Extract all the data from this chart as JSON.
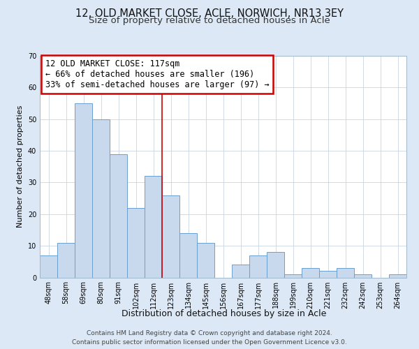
{
  "title1": "12, OLD MARKET CLOSE, ACLE, NORWICH, NR13 3EY",
  "title2": "Size of property relative to detached houses in Acle",
  "xlabel": "Distribution of detached houses by size in Acle",
  "ylabel": "Number of detached properties",
  "bar_labels": [
    "48sqm",
    "58sqm",
    "69sqm",
    "80sqm",
    "91sqm",
    "102sqm",
    "112sqm",
    "123sqm",
    "134sqm",
    "145sqm",
    "156sqm",
    "167sqm",
    "177sqm",
    "188sqm",
    "199sqm",
    "210sqm",
    "221sqm",
    "232sqm",
    "242sqm",
    "253sqm",
    "264sqm"
  ],
  "bar_values": [
    7,
    11,
    55,
    50,
    39,
    22,
    32,
    26,
    14,
    11,
    0,
    4,
    7,
    8,
    1,
    3,
    2,
    3,
    1,
    0,
    1
  ],
  "bar_color": "#c8d9ee",
  "bar_edge_color": "#6a9fd0",
  "property_line_x": 6.5,
  "annotation_line1": "12 OLD MARKET CLOSE: 117sqm",
  "annotation_line2": "← 66% of detached houses are smaller (196)",
  "annotation_line3": "33% of semi-detached houses are larger (97) →",
  "annotation_box_color": "#ffffff",
  "annotation_border_color": "#cc0000",
  "ylim": [
    0,
    70
  ],
  "yticks": [
    0,
    10,
    20,
    30,
    40,
    50,
    60,
    70
  ],
  "footer1": "Contains HM Land Registry data © Crown copyright and database right 2024.",
  "footer2": "Contains public sector information licensed under the Open Government Licence v3.0.",
  "bg_color": "#dce8f5",
  "plot_bg_color": "#ffffff",
  "grid_color": "#c8d4e0",
  "title_fontsize": 10.5,
  "subtitle_fontsize": 9.5,
  "ylabel_fontsize": 8,
  "xlabel_fontsize": 9,
  "tick_fontsize": 7,
  "footer_fontsize": 6.5,
  "ann_fontsize": 8.5
}
